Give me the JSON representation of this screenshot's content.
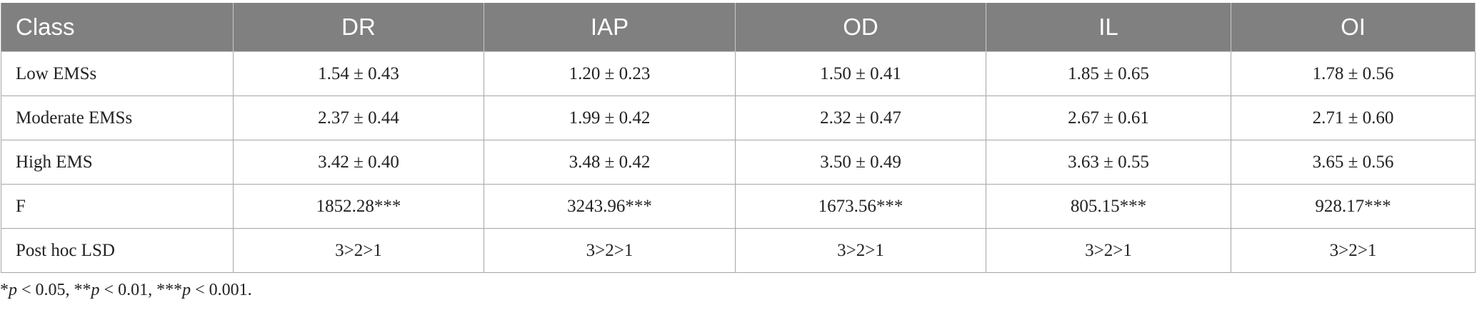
{
  "table": {
    "header": [
      "Class",
      "DR",
      "IAP",
      "OD",
      "IL",
      "OI"
    ],
    "rows": [
      [
        "Low EMSs",
        "1.54 ± 0.43",
        "1.20 ± 0.23",
        "1.50 ± 0.41",
        "1.85 ± 0.65",
        "1.78 ± 0.56"
      ],
      [
        "Moderate EMSs",
        "2.37 ± 0.44",
        "1.99 ± 0.42",
        "2.32 ± 0.47",
        "2.67 ± 0.61",
        "2.71 ± 0.60"
      ],
      [
        "High EMS",
        "3.42 ± 0.40",
        "3.48 ± 0.42",
        "3.50 ± 0.49",
        "3.63 ± 0.55",
        "3.65 ± 0.56"
      ],
      [
        "F",
        "1852.28***",
        "3243.96***",
        "1673.56***",
        "805.15***",
        "928.17***"
      ],
      [
        "Post hoc LSD",
        "3>2>1",
        "3>2>1",
        "3>2>1",
        "3>2>1",
        "3>2>1"
      ]
    ]
  },
  "footnote": [
    "*",
    "p",
    " < 0.05, **",
    "p",
    " < 0.01, ***",
    "p",
    " < 0.001."
  ]
}
